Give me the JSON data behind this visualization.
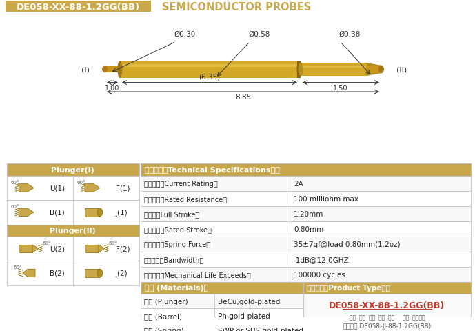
{
  "title_box_text": "DE058-XX-88-1.2GG(BB)",
  "title_right_text": "SEMICONDUCTOR PROBES",
  "gold_color": "#C9A84C",
  "background_color": "#FFFFFF",
  "dim_d030": "Ø0.30",
  "dim_d058": "Ø0.58",
  "dim_d038": "Ø0.38",
  "dim_635": "(6.35)",
  "dim_100": "1.00",
  "dim_150": "1.50",
  "dim_885": "8.85",
  "label_I": "(I)",
  "label_II": "(II)",
  "spec_rows": [
    [
      "额定电流（Current Rating）",
      "2A"
    ],
    [
      "额定电阵（Rated Resistance）",
      "100 milliohm max"
    ],
    [
      "满行程（Full Stroke）",
      "1.20mm"
    ],
    [
      "额定行程（Rated Stroke）",
      "0.80mm"
    ],
    [
      "额定弹力（Spring Force）",
      "35±7gf@load 0.80mm(1.2oz)"
    ],
    [
      "频率带宽（Bandwidth）",
      "-1dB@12.0GHZ"
    ],
    [
      "测试寿命（Mechanical Life Exceeds）",
      "100000 cycles"
    ]
  ],
  "mat_title": "材质 (Materials)：",
  "mat_rows": [
    [
      "针头 (Plunger)",
      "BeCu,gold-plated"
    ],
    [
      "针管 (Barrel)",
      "Ph,gold-plated"
    ],
    [
      "弹簧 (Spring)",
      "SWP or SUS,gold-plated"
    ]
  ],
  "product_type_title": "成品型号（Product Type）：",
  "product_type_model": "DE058-XX-88-1.2GG(BB)",
  "product_type_labels": "系列  规格  头型  行长  弹力     镍金  针头材质",
  "product_type_order": "订购举例:DE058-JJ-88-1.2GG(BB)",
  "plunger1_title": "Plunger(I)",
  "plunger2_title": "Plunger(II)",
  "plunger1_items": [
    [
      "U(1)",
      "F(1)"
    ],
    [
      "B(1)",
      "J(1)"
    ]
  ],
  "plunger2_items": [
    [
      "U(2)",
      "F(2)"
    ],
    [
      "B(2)",
      "J(2)"
    ]
  ],
  "tech_title": "技术要求（Technical Specifications）："
}
